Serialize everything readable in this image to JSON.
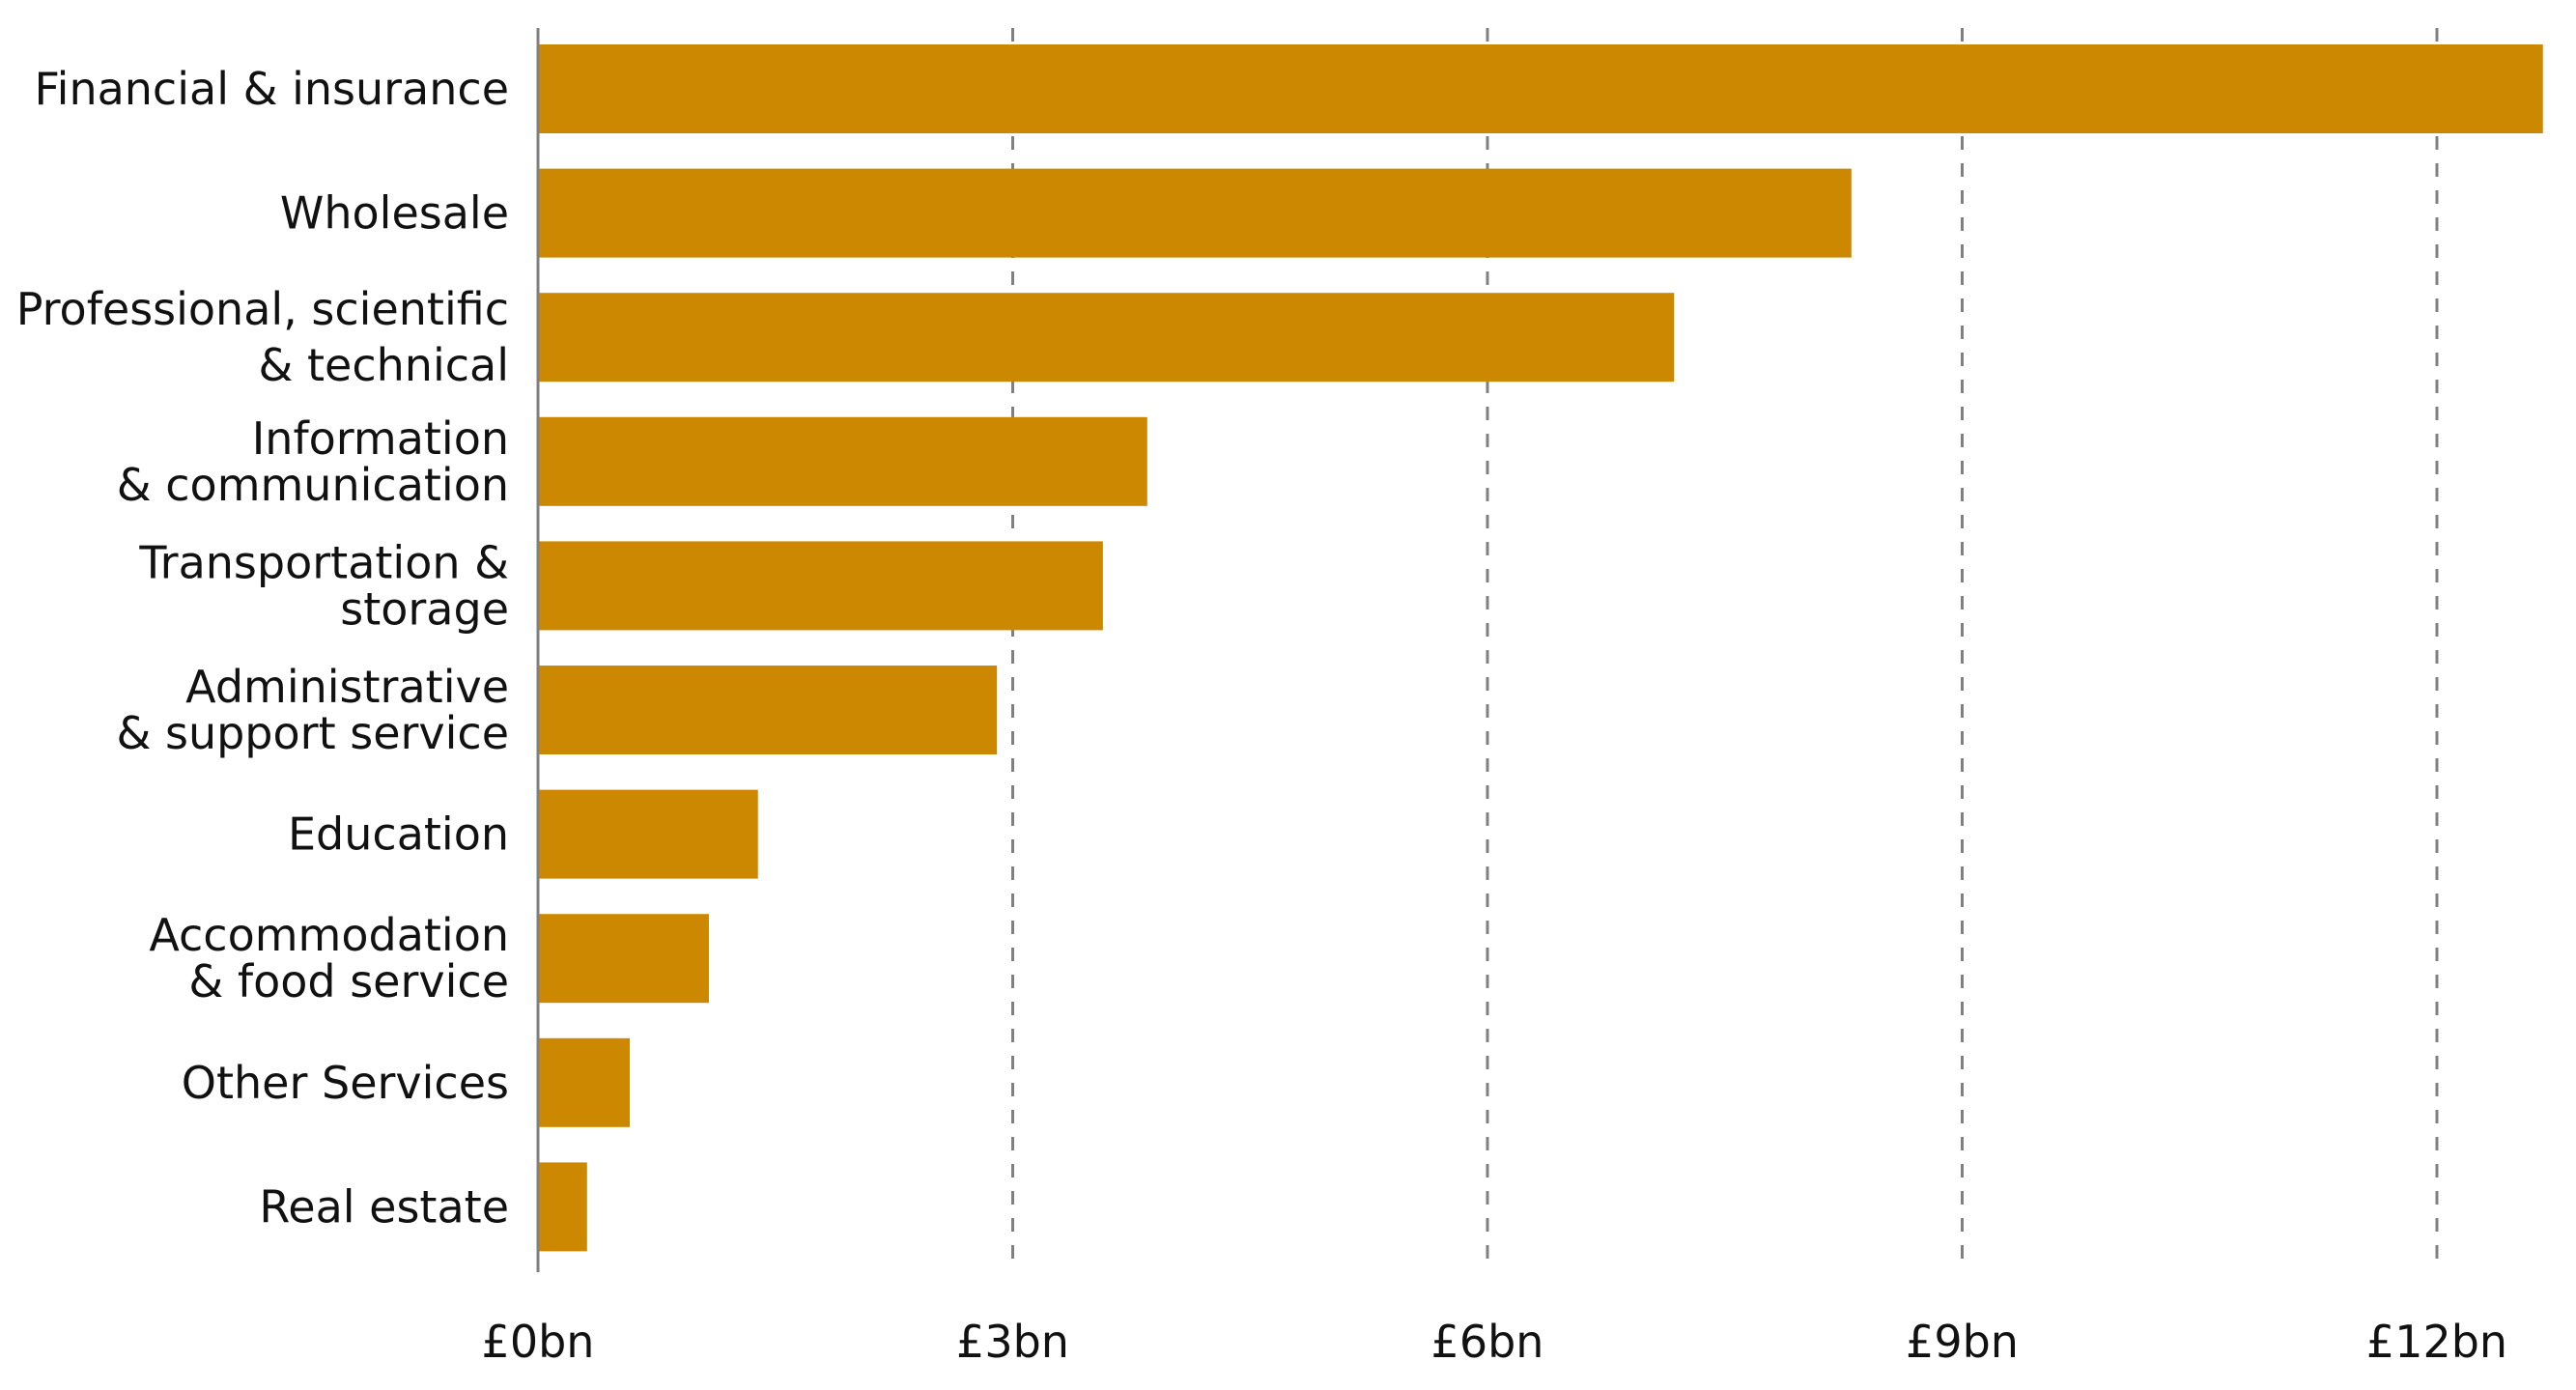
{
  "chart_data": {
    "type": "bar",
    "orientation": "horizontal",
    "categories": [
      [
        "Financial & insurance"
      ],
      [
        "Wholesale"
      ],
      [
        "Professional, scientific",
        "& technical"
      ],
      [
        "Information",
        "& communication"
      ],
      [
        "Transportation &",
        "storage"
      ],
      [
        "Administrative",
        "& support service"
      ],
      [
        "Education"
      ],
      [
        "Accommodation",
        "& food service"
      ],
      [
        "Other Services"
      ],
      [
        "Real estate"
      ]
    ],
    "values": [
      12.67,
      8.3,
      7.18,
      3.85,
      3.57,
      2.9,
      1.39,
      1.08,
      0.58,
      0.31
    ],
    "unit": "£bn",
    "xlim": [
      0,
      12.7
    ],
    "ticks": [
      0,
      3,
      6,
      9,
      12
    ],
    "tick_labels": [
      "£0bn",
      "£3bn",
      "£6bn",
      "£9bn",
      "£12bn"
    ],
    "grid": "vertical dashed",
    "legend": "none",
    "colors": {
      "bar": "#CC8800",
      "grid": "#808080",
      "axis": "#808080"
    }
  }
}
